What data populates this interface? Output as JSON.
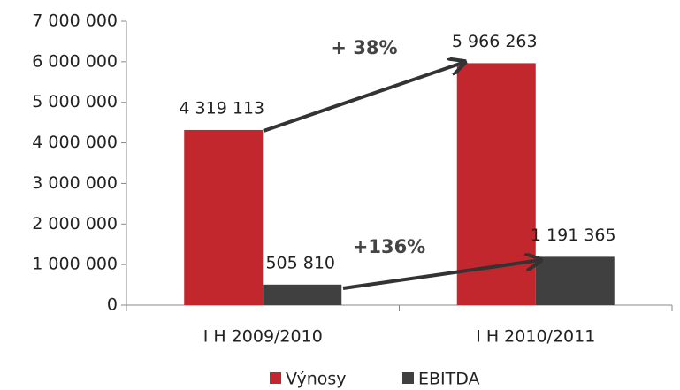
{
  "chart_data": {
    "type": "bar",
    "categories": [
      "I H 2009/2010",
      "I H 2010/2011"
    ],
    "series": [
      {
        "name": "Výnosy",
        "color": "#c1272d",
        "values": [
          4319113,
          5966263
        ],
        "value_labels": [
          "4 319 113",
          "5 966 263"
        ]
      },
      {
        "name": "EBITDA",
        "color": "#404040",
        "values": [
          505810,
          1191365
        ],
        "value_labels": [
          "505 810",
          "1 191 365"
        ]
      }
    ],
    "ylim": [
      0,
      7000000
    ],
    "yticks": [
      {
        "value": 0,
        "label": "0"
      },
      {
        "value": 1000000,
        "label": "1 000 000"
      },
      {
        "value": 2000000,
        "label": "2 000 000"
      },
      {
        "value": 3000000,
        "label": "3 000 000"
      },
      {
        "value": 4000000,
        "label": "4 000 000"
      },
      {
        "value": 5000000,
        "label": "5 000 000"
      },
      {
        "value": 6000000,
        "label": "6 000 000"
      },
      {
        "value": 7000000,
        "label": "7 000 000"
      }
    ],
    "annotations": [
      "+ 38%",
      "+136%"
    ],
    "legend": "bottom"
  }
}
